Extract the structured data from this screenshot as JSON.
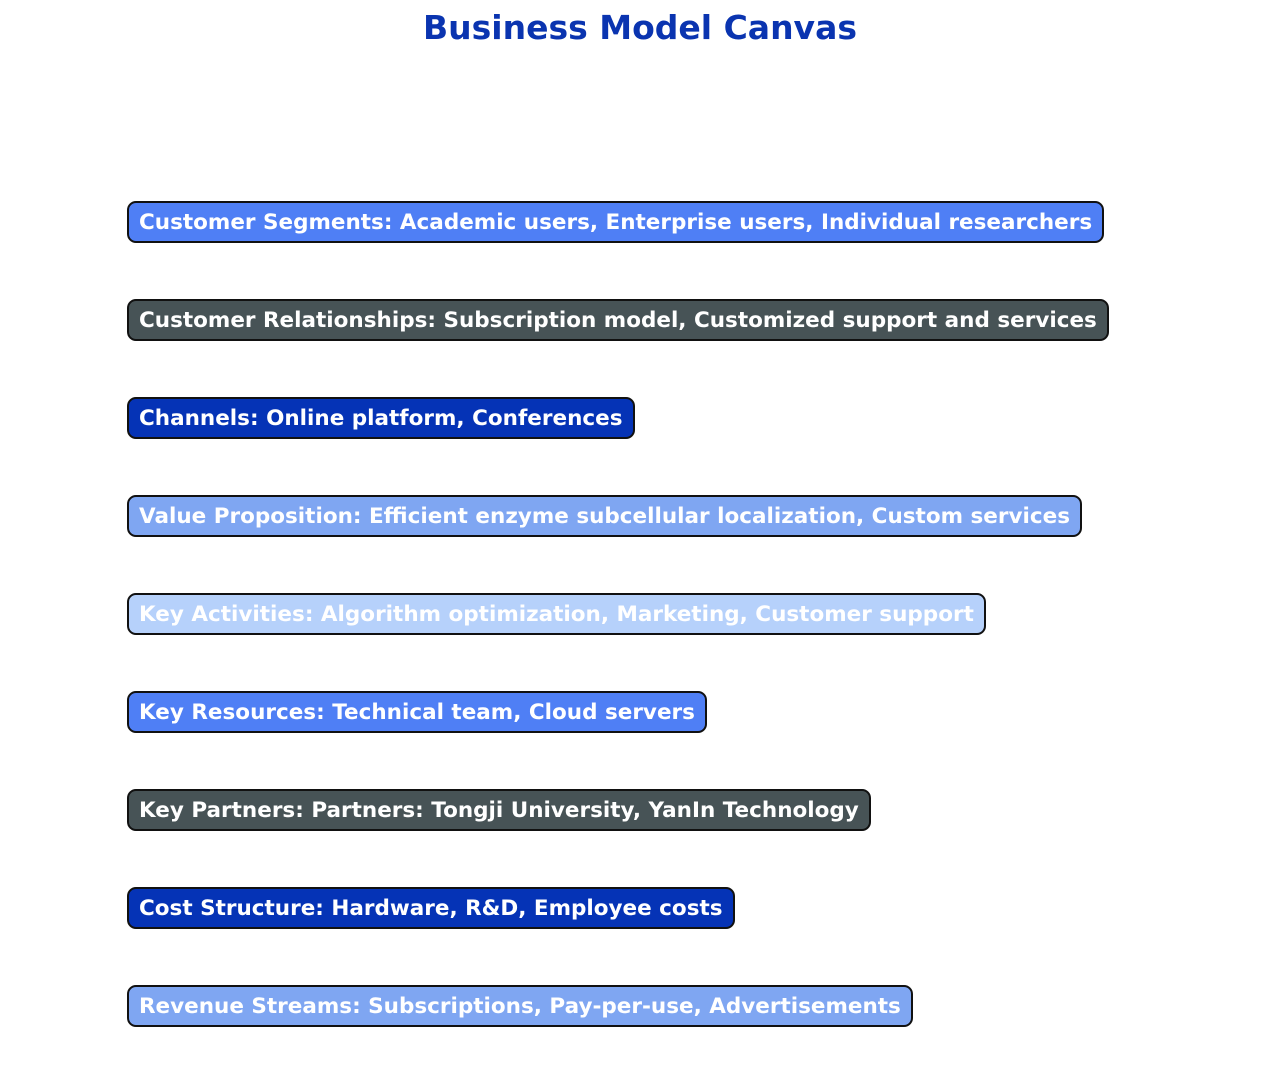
{
  "title": "Business Model Canvas",
  "blocks": [
    {
      "label": "Customer Segments",
      "text": "Academic users, Enterprise users, Individual researchers",
      "color": "#4f7ff5"
    },
    {
      "label": "Customer Relationships",
      "text": "Subscription model, Customized support and services",
      "color": "#475356"
    },
    {
      "label": "Channels",
      "text": "Online platform, Conferences",
      "color": "#0533b6"
    },
    {
      "label": "Value Proposition",
      "text": "Efficient enzyme subcellular localization, Custom services",
      "color": "#7fa6f2"
    },
    {
      "label": "Key Activities",
      "text": "Algorithm optimization, Marketing, Customer support",
      "color": "#b6d1fb"
    },
    {
      "label": "Key Resources",
      "text": "Technical team, Cloud servers",
      "color": "#4f7ff5"
    },
    {
      "label": "Key Partners",
      "text": "Partners: Tongji University, YanIn Technology",
      "color": "#475356"
    },
    {
      "label": "Cost Structure",
      "text": "Hardware, R&D, Employee costs",
      "color": "#0533b6"
    },
    {
      "label": "Revenue Streams",
      "text": "Subscriptions, Pay-per-use, Advertisements",
      "color": "#7fa6f2"
    }
  ]
}
